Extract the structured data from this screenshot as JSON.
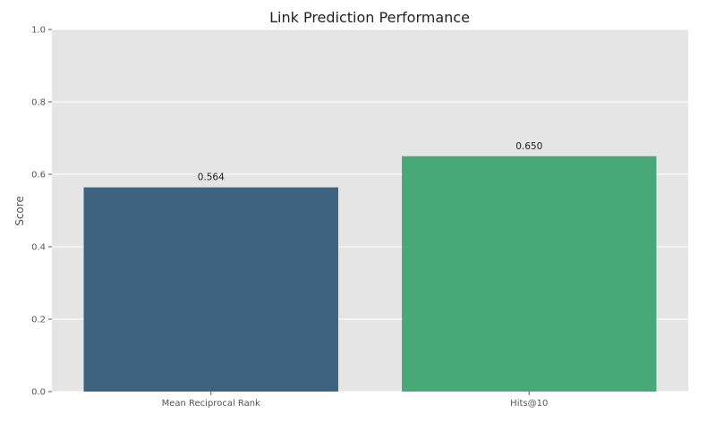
{
  "chart_data": {
    "type": "bar",
    "title": "Link Prediction Performance",
    "xlabel": "",
    "ylabel": "Score",
    "categories": [
      "Mean Reciprocal Rank",
      "Hits@10"
    ],
    "values": [
      0.564,
      0.65
    ],
    "value_labels": [
      "0.564",
      "0.650"
    ],
    "colors": [
      "#3e6380",
      "#47a878"
    ],
    "ylim": [
      0,
      1.0
    ],
    "yticks": [
      0.0,
      0.2,
      0.4,
      0.6,
      0.8,
      1.0
    ],
    "ytick_labels": [
      "0.0",
      "0.2",
      "0.4",
      "0.6",
      "0.8",
      "1.0"
    ],
    "grid": true,
    "legend": "none",
    "style": {
      "plot_background": "#e5e5e5",
      "grid_color": "#ffffff"
    }
  }
}
